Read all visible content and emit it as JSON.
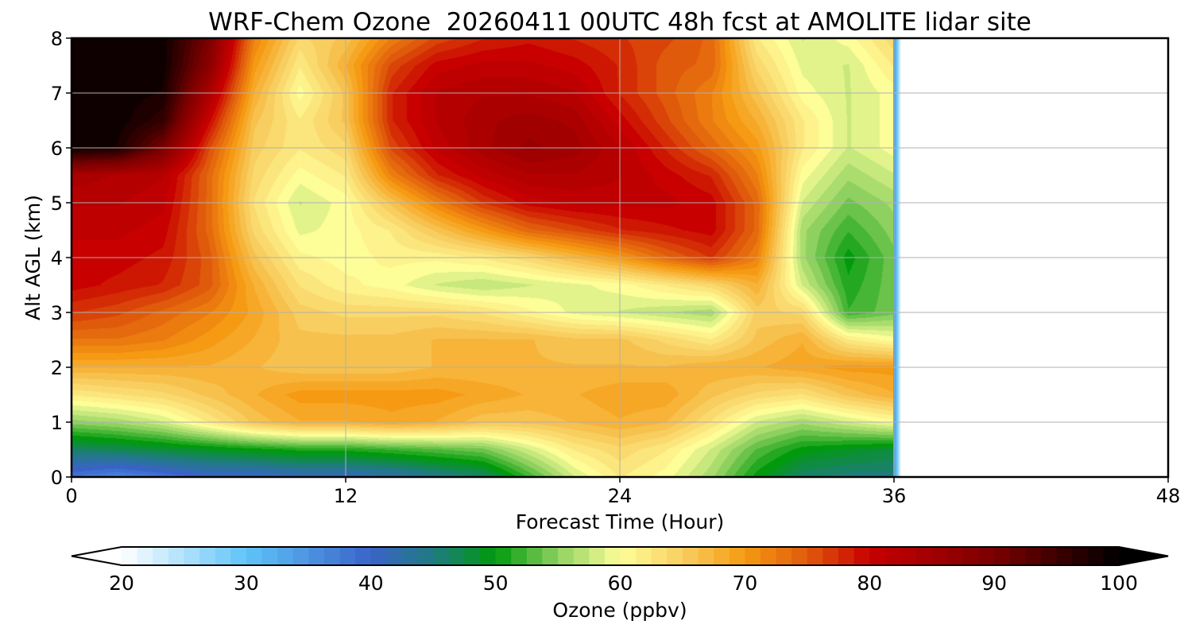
{
  "title": "WRF-Chem Ozone  20260411 00UTC 48h fcst at AMOLITE lidar site",
  "chart_data": {
    "type": "heatmap",
    "title": "WRF-Chem Ozone  20260411 00UTC 48h fcst at AMOLITE lidar site",
    "xlabel": "Forecast Time (Hour)",
    "ylabel": "Alt AGL (km)",
    "xlim": [
      0,
      48
    ],
    "ylim": [
      0,
      8
    ],
    "xticks": [
      0,
      12,
      24,
      36,
      48
    ],
    "yticks": [
      0,
      1,
      2,
      3,
      4,
      5,
      6,
      7,
      8
    ],
    "grid": true,
    "data_end_hour": 36,
    "colorbar": {
      "label": "Ozone  (ppbv)",
      "min": 20,
      "max": 100,
      "ticks": [
        20,
        30,
        40,
        50,
        60,
        70,
        80,
        90,
        100
      ],
      "extend": "both",
      "stops": [
        {
          "v": 20,
          "c": "#ffffff"
        },
        {
          "v": 30,
          "c": "#5fc4f8"
        },
        {
          "v": 40,
          "c": "#3a63c9"
        },
        {
          "v": 45,
          "c": "#1f7b80"
        },
        {
          "v": 50,
          "c": "#009a0c"
        },
        {
          "v": 55,
          "c": "#8ed160"
        },
        {
          "v": 60,
          "c": "#fefe99"
        },
        {
          "v": 65,
          "c": "#f8ce60"
        },
        {
          "v": 70,
          "c": "#f59a12"
        },
        {
          "v": 75,
          "c": "#e05a0c"
        },
        {
          "v": 80,
          "c": "#c80000"
        },
        {
          "v": 90,
          "c": "#7a0000"
        },
        {
          "v": 100,
          "c": "#000000"
        }
      ]
    },
    "x": [
      0,
      2,
      4,
      6,
      8,
      10,
      12,
      14,
      16,
      18,
      20,
      22,
      24,
      26,
      28,
      30,
      32,
      34,
      36
    ],
    "y": [
      0,
      0.5,
      1,
      1.5,
      2,
      2.5,
      3,
      3.5,
      4,
      4.5,
      5,
      5.5,
      6,
      6.5,
      7,
      7.5,
      8
    ],
    "z": [
      [
        38,
        36,
        38,
        40,
        40,
        41,
        41,
        42,
        44,
        46,
        52,
        58,
        62,
        60,
        56,
        50,
        46,
        45,
        45
      ],
      [
        46,
        47,
        48,
        49,
        50,
        51,
        51,
        52,
        53,
        54,
        58,
        62,
        64,
        62,
        58,
        53,
        50,
        49,
        48
      ],
      [
        55,
        56,
        58,
        62,
        66,
        68,
        68,
        69,
        68,
        66,
        66,
        67,
        68,
        67,
        63,
        58,
        56,
        58,
        60
      ],
      [
        62,
        63,
        64,
        66,
        68,
        70,
        70,
        70,
        70,
        69,
        68,
        68,
        69,
        69,
        66,
        64,
        63,
        66,
        68
      ],
      [
        68,
        68,
        68,
        68,
        67,
        66,
        66,
        66,
        67,
        67,
        67,
        67,
        67,
        67,
        68,
        68,
        69,
        70,
        70
      ],
      [
        73,
        73,
        72,
        70,
        68,
        66,
        66,
        66,
        67,
        67,
        67,
        66,
        66,
        64,
        62,
        66,
        68,
        62,
        60
      ],
      [
        77,
        76,
        74,
        72,
        69,
        65,
        64,
        64,
        64,
        63,
        61,
        59,
        58,
        57,
        56,
        65,
        64,
        52,
        54
      ],
      [
        80,
        79,
        78,
        75,
        68,
        63,
        61,
        60,
        58,
        57,
        58,
        59,
        60,
        62,
        64,
        68,
        58,
        51,
        54
      ],
      [
        80,
        80,
        79,
        75,
        66,
        61,
        60,
        61,
        61,
        62,
        64,
        67,
        70,
        74,
        77,
        72,
        56,
        50,
        54
      ],
      [
        81,
        81,
        80,
        74,
        64,
        59,
        60,
        62,
        66,
        70,
        74,
        76,
        78,
        79,
        80,
        74,
        56,
        52,
        55
      ],
      [
        82,
        82,
        81,
        74,
        63,
        58,
        60,
        66,
        72,
        77,
        80,
        81,
        81,
        81,
        80,
        74,
        58,
        54,
        56
      ],
      [
        84,
        83,
        82,
        74,
        64,
        60,
        62,
        72,
        78,
        81,
        83,
        83,
        82,
        80,
        78,
        72,
        60,
        56,
        58
      ],
      [
        99,
        98,
        90,
        76,
        65,
        62,
        64,
        76,
        81,
        84,
        86,
        85,
        82,
        78,
        74,
        70,
        62,
        58,
        60
      ],
      [
        99,
        99,
        96,
        80,
        66,
        62,
        66,
        78,
        82,
        84,
        85,
        84,
        80,
        76,
        72,
        68,
        62,
        58,
        60
      ],
      [
        99,
        99,
        98,
        84,
        68,
        60,
        66,
        78,
        82,
        83,
        83,
        82,
        78,
        75,
        72,
        66,
        60,
        58,
        60
      ],
      [
        99,
        99,
        99,
        88,
        70,
        62,
        68,
        76,
        80,
        81,
        81,
        80,
        78,
        75,
        74,
        64,
        59,
        58,
        62
      ],
      [
        99,
        99,
        99,
        90,
        72,
        64,
        66,
        72,
        76,
        78,
        79,
        78,
        77,
        76,
        74,
        62,
        58,
        60,
        64
      ]
    ]
  }
}
